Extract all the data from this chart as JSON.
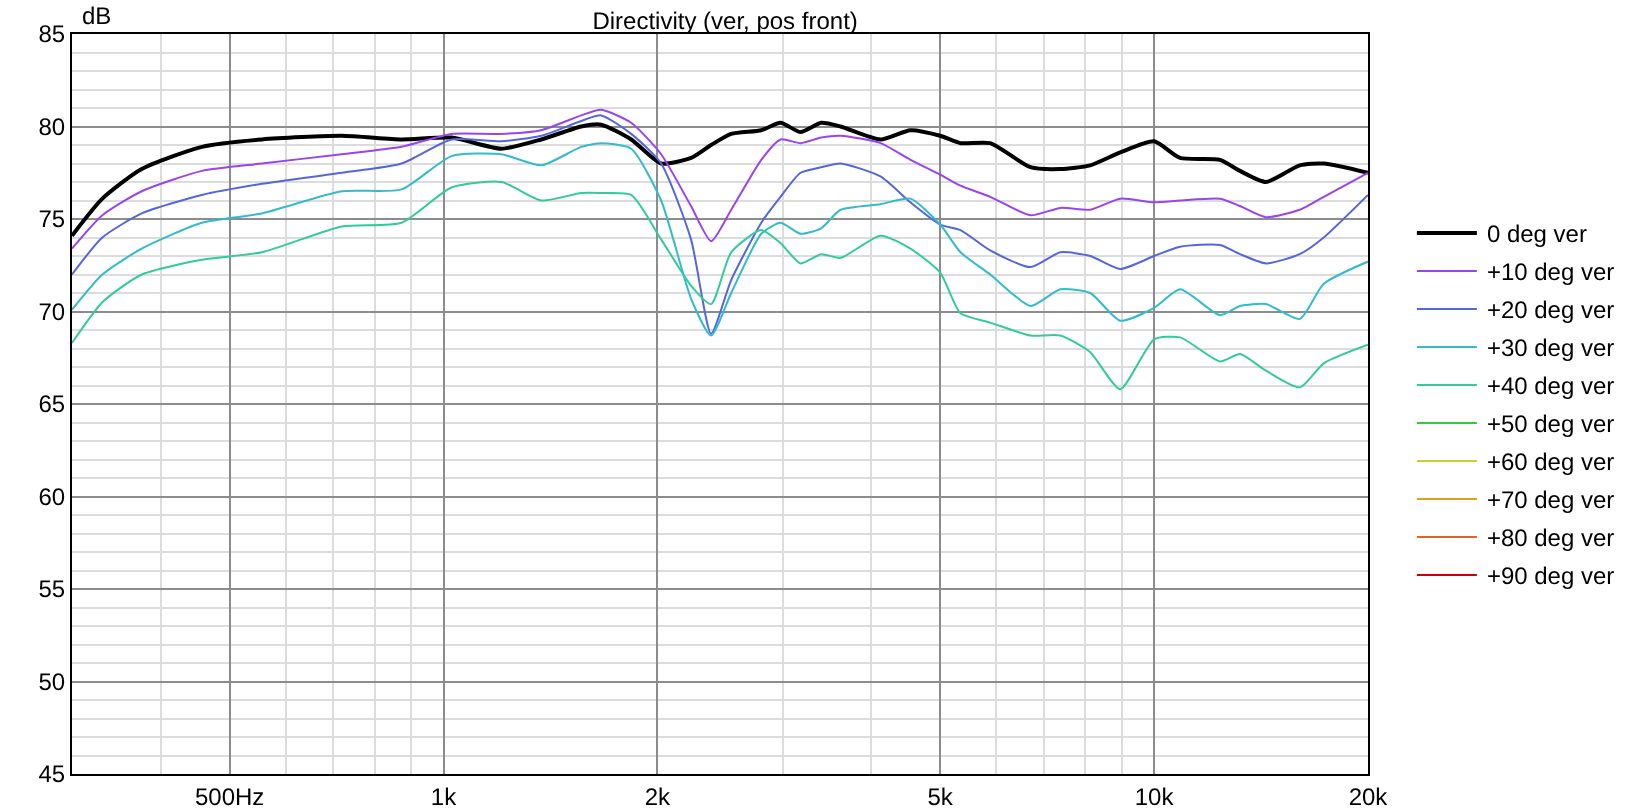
{
  "chart_data": {
    "type": "line",
    "title": "Directivity (ver, pos front)",
    "ylabel": "dB",
    "x": [
      300,
      331,
      376,
      457,
      555,
      719,
      873,
      1026,
      1206,
      1373,
      1562,
      1667,
      1837,
      2024,
      2230,
      2380,
      2540,
      2800,
      2980,
      3180,
      3400,
      3620,
      4120,
      4540,
      5000,
      5340,
      5880,
      6700,
      7380,
      8130,
      8960,
      10000,
      10880,
      12380,
      13210,
      14370,
      16030,
      17330,
      20000
    ],
    "series": [
      {
        "name": "0 deg ver",
        "color": "#000000",
        "values": [
          74.1,
          76.1,
          77.7,
          78.9,
          79.3,
          79.5,
          79.3,
          79.4,
          78.8,
          79.3,
          80.0,
          80.1,
          79.3,
          78.0,
          78.3,
          79.0,
          79.6,
          79.8,
          80.2,
          79.7,
          80.2,
          80.0,
          79.3,
          79.8,
          79.5,
          79.1,
          79.1,
          77.8,
          77.7,
          77.9,
          78.6,
          79.2,
          78.3,
          78.2,
          77.6,
          77.0,
          77.9,
          78.0,
          77.5
        ]
      },
      {
        "name": "+10 deg ver",
        "color": "#9944ee",
        "values": [
          73.4,
          75.2,
          76.5,
          77.6,
          78.0,
          78.5,
          78.9,
          79.6,
          79.6,
          79.8,
          80.6,
          80.9,
          80.2,
          78.5,
          75.7,
          73.8,
          75.5,
          78.2,
          79.3,
          79.1,
          79.4,
          79.5,
          79.1,
          78.2,
          77.4,
          76.8,
          76.2,
          75.2,
          75.6,
          75.5,
          76.1,
          75.9,
          76.0,
          76.1,
          75.7,
          75.1,
          75.5,
          76.2,
          77.5
        ]
      },
      {
        "name": "+20 deg ver",
        "color": "#5566dd",
        "values": [
          72.0,
          74.0,
          75.3,
          76.3,
          76.9,
          77.5,
          78.0,
          79.3,
          79.2,
          79.5,
          80.3,
          80.6,
          79.6,
          78.0,
          73.9,
          68.8,
          71.7,
          74.8,
          76.2,
          77.5,
          77.8,
          78.0,
          77.3,
          75.9,
          74.7,
          74.4,
          73.3,
          72.4,
          73.2,
          73.0,
          72.3,
          73.0,
          73.5,
          73.6,
          73.1,
          72.6,
          73.1,
          74.0,
          76.3
        ]
      },
      {
        "name": "+30 deg ver",
        "color": "#33bbcc",
        "values": [
          70.1,
          72.0,
          73.4,
          74.8,
          75.3,
          76.5,
          76.6,
          78.4,
          78.5,
          77.9,
          78.9,
          79.1,
          78.8,
          76.0,
          70.7,
          68.7,
          71.0,
          74.2,
          74.8,
          74.2,
          74.5,
          75.5,
          75.8,
          76.1,
          74.7,
          73.2,
          72.0,
          70.3,
          71.2,
          71.0,
          69.5,
          70.2,
          71.2,
          69.8,
          70.3,
          70.4,
          69.6,
          71.5,
          72.7
        ]
      },
      {
        "name": "+40 deg ver",
        "color": "#33cc99",
        "values": [
          68.3,
          70.5,
          72.0,
          72.8,
          73.2,
          74.6,
          74.8,
          76.7,
          77.0,
          76.0,
          76.4,
          76.4,
          76.3,
          73.9,
          71.4,
          70.4,
          73.2,
          74.4,
          73.7,
          72.6,
          73.1,
          72.9,
          74.1,
          73.4,
          72.1,
          69.9,
          69.4,
          68.7,
          68.7,
          67.8,
          65.8,
          68.5,
          68.6,
          67.3,
          67.7,
          66.8,
          65.9,
          67.2,
          68.2
        ]
      },
      {
        "name": "+50 deg ver",
        "color": "#33cc33",
        "values": [
          null,
          null,
          null,
          null,
          null,
          null,
          null,
          null,
          null,
          null,
          null,
          null,
          null,
          null,
          null,
          null,
          null,
          null,
          null,
          null,
          null,
          null,
          null,
          null,
          null,
          null,
          null,
          null,
          null,
          null,
          null,
          null,
          null,
          null,
          null,
          null,
          null,
          null,
          null
        ]
      },
      {
        "name": "+60 deg ver",
        "color": "#cccc33",
        "values": [
          null,
          null,
          null,
          null,
          null,
          null,
          null,
          null,
          null,
          null,
          null,
          null,
          null,
          null,
          null,
          null,
          null,
          null,
          null,
          null,
          null,
          null,
          null,
          null,
          null,
          null,
          null,
          null,
          null,
          null,
          null,
          null,
          null,
          null,
          null,
          null,
          null,
          null,
          null
        ]
      },
      {
        "name": "+70 deg ver",
        "color": "#dda020",
        "values": [
          null,
          null,
          null,
          null,
          null,
          null,
          null,
          null,
          null,
          null,
          null,
          null,
          null,
          null,
          null,
          null,
          null,
          null,
          null,
          null,
          null,
          null,
          null,
          null,
          null,
          null,
          null,
          null,
          null,
          null,
          null,
          null,
          null,
          null,
          null,
          null,
          null,
          null,
          null
        ]
      },
      {
        "name": "+80 deg ver",
        "color": "#e06030",
        "values": [
          null,
          null,
          null,
          null,
          null,
          null,
          null,
          null,
          null,
          null,
          null,
          null,
          null,
          null,
          null,
          null,
          null,
          null,
          null,
          null,
          null,
          null,
          null,
          null,
          null,
          null,
          null,
          null,
          null,
          null,
          null,
          null,
          null,
          null,
          null,
          null,
          null,
          null,
          null
        ]
      },
      {
        "name": "+90 deg ver",
        "color": "#cc0000",
        "values": [
          null,
          null,
          null,
          null,
          null,
          null,
          null,
          null,
          null,
          null,
          null,
          null,
          null,
          null,
          null,
          null,
          null,
          null,
          null,
          null,
          null,
          null,
          null,
          null,
          null,
          null,
          null,
          null,
          null,
          null,
          null,
          null,
          null,
          null,
          null,
          null,
          null,
          null,
          null
        ]
      }
    ],
    "log": "x",
    "xlim": [
      300,
      20000
    ],
    "xticks": [
      {
        "value": 400,
        "label": null
      },
      {
        "value": 500,
        "label": "500Hz"
      },
      {
        "value": 600,
        "label": null
      },
      {
        "value": 700,
        "label": null
      },
      {
        "value": 800,
        "label": null
      },
      {
        "value": 900,
        "label": null
      },
      {
        "value": 1000,
        "label": "1k"
      },
      {
        "value": 2000,
        "label": "2k"
      },
      {
        "value": 3000,
        "label": null
      },
      {
        "value": 4000,
        "label": null
      },
      {
        "value": 5000,
        "label": "5k"
      },
      {
        "value": 6000,
        "label": null
      },
      {
        "value": 7000,
        "label": null
      },
      {
        "value": 8000,
        "label": null
      },
      {
        "value": 9000,
        "label": null
      },
      {
        "value": 10000,
        "label": "10k"
      },
      {
        "value": 20000,
        "label": "20k"
      }
    ],
    "ylim": [
      45,
      85
    ],
    "yticks": [
      45,
      {
        "value": 46,
        "label": null
      },
      {
        "value": 47,
        "label": null
      },
      {
        "value": 48,
        "label": null
      },
      {
        "value": 49,
        "label": null
      },
      50,
      {
        "value": 51,
        "label": null
      },
      {
        "value": 52,
        "label": null
      },
      {
        "value": 53,
        "label": null
      },
      {
        "value": 54,
        "label": null
      },
      55,
      {
        "value": 56,
        "label": null
      },
      {
        "value": 57,
        "label": null
      },
      {
        "value": 58,
        "label": null
      },
      {
        "value": 59,
        "label": null
      },
      60,
      {
        "value": 61,
        "label": null
      },
      {
        "value": 62,
        "label": null
      },
      {
        "value": 63,
        "label": null
      },
      {
        "value": 64,
        "label": null
      },
      65,
      {
        "value": 66,
        "label": null
      },
      {
        "value": 67,
        "label": null
      },
      {
        "value": 68,
        "label": null
      },
      {
        "value": 69,
        "label": null
      },
      70,
      {
        "value": 71,
        "label": null
      },
      {
        "value": 72,
        "label": null
      },
      {
        "value": 73,
        "label": null
      },
      {
        "value": 74,
        "label": null
      },
      75,
      {
        "value": 76,
        "label": null
      },
      {
        "value": 77,
        "label": null
      },
      {
        "value": 78,
        "label": null
      },
      {
        "value": 79,
        "label": null
      },
      80,
      {
        "value": 81,
        "label": null
      },
      {
        "value": 82,
        "label": null
      },
      {
        "value": 83,
        "label": null
      },
      {
        "value": 84,
        "label": null
      },
      85
    ],
    "grid": true,
    "legend": "right",
    "marker": "none",
    "line_style": "solid"
  }
}
